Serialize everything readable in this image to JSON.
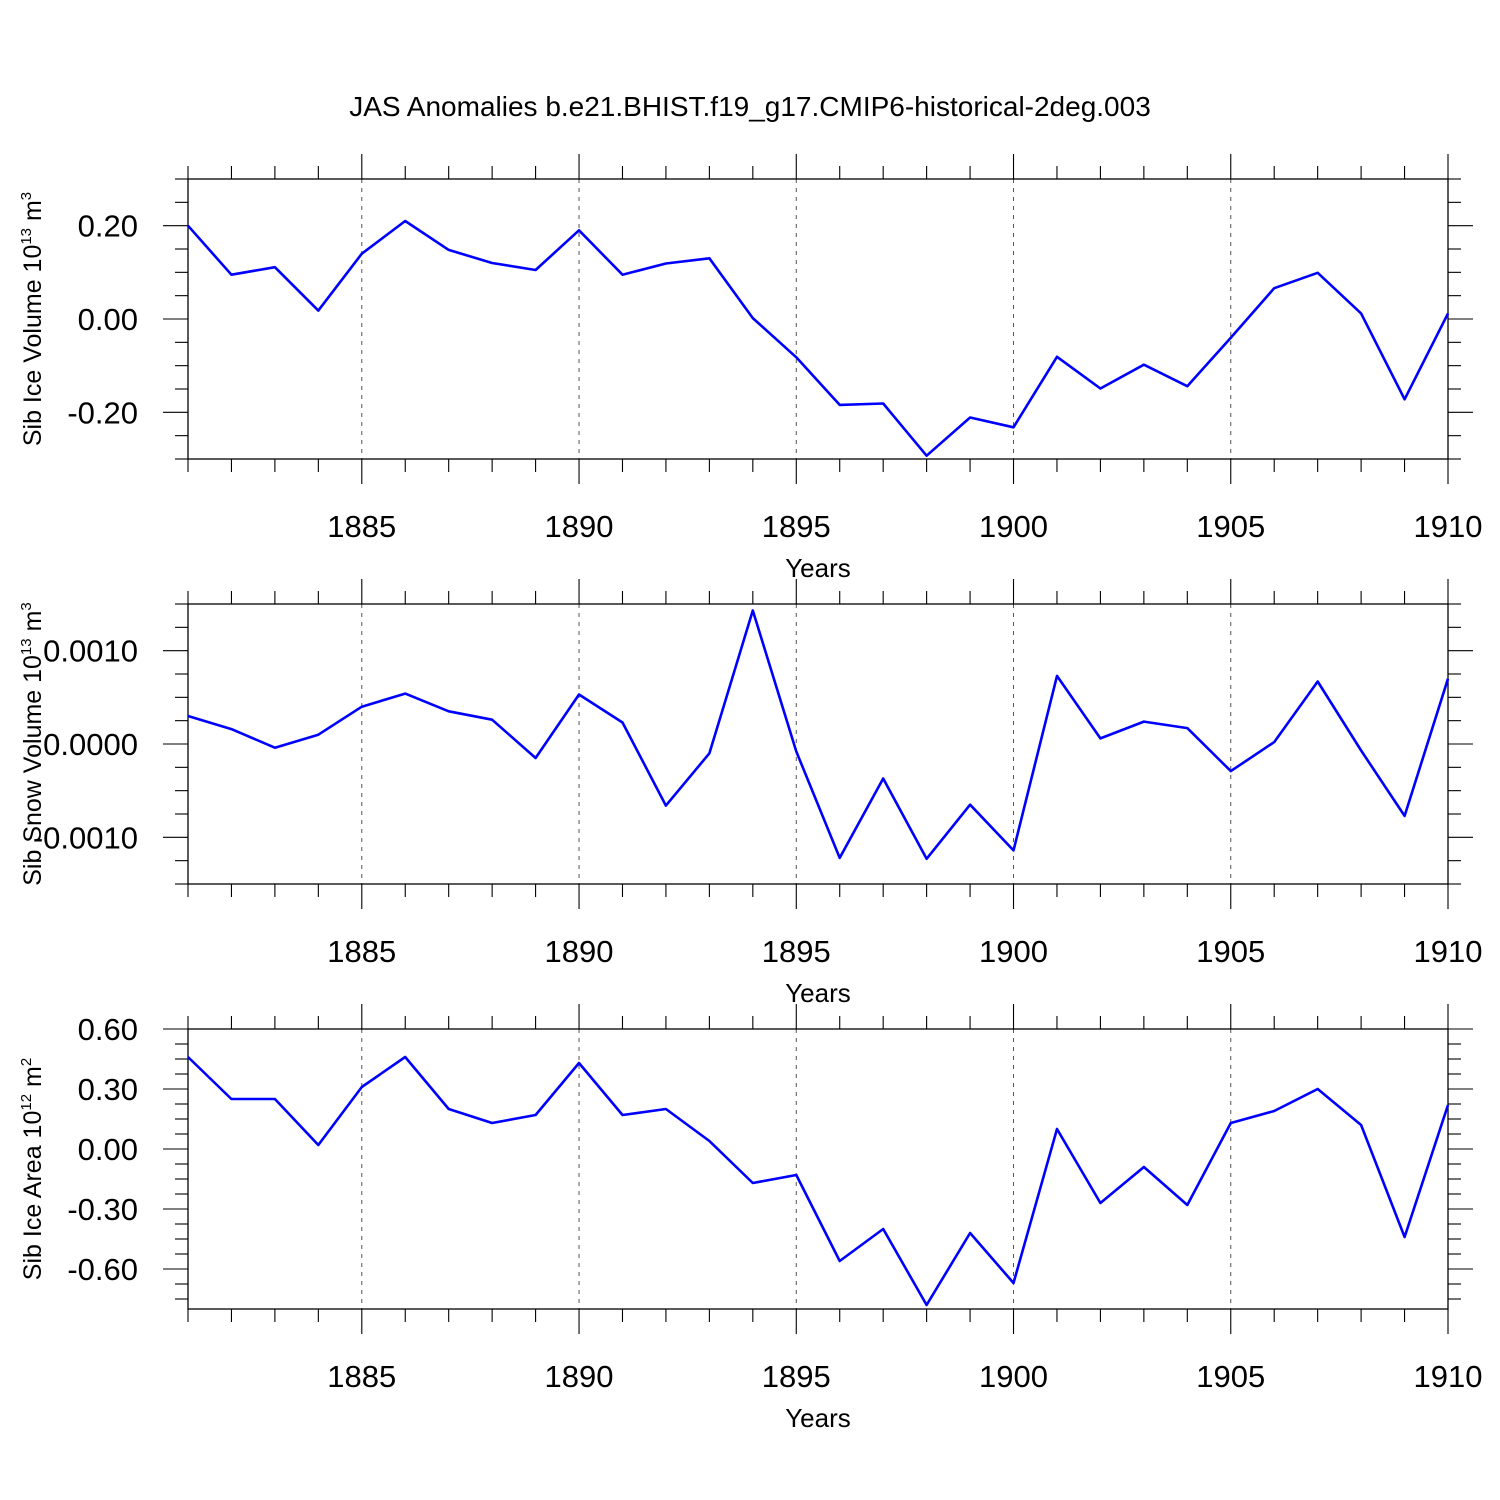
{
  "title": "JAS Anomalies b.e21.BHIST.f19_g17.CMIP6-historical-2deg.003",
  "line_color": "#0000ff",
  "chart_data": [
    {
      "type": "line",
      "ylabel": {
        "prefix": "Sib Ice Volume 10",
        "exp": "13",
        "unit": " m",
        "unit_exp": "3"
      },
      "xlabel": "Years",
      "xlim": [
        1881,
        1910
      ],
      "ylim": [
        -0.3,
        0.3
      ],
      "xticks": [
        1885,
        1890,
        1895,
        1900,
        1905,
        1910
      ],
      "yticks": [
        0.2,
        0.0,
        -0.2
      ],
      "ytick_labels": [
        "0.20",
        "0.00",
        "-0.20"
      ],
      "grid": "vertical dashed at major x ticks",
      "x": [
        1881,
        1882,
        1883,
        1884,
        1885,
        1886,
        1887,
        1888,
        1889,
        1890,
        1891,
        1892,
        1893,
        1894,
        1895,
        1896,
        1897,
        1898,
        1899,
        1900,
        1901,
        1902,
        1903,
        1904,
        1905,
        1906,
        1907,
        1908,
        1909,
        1910
      ],
      "values": [
        0.2,
        0.095,
        0.111,
        0.018,
        0.14,
        0.21,
        0.148,
        0.12,
        0.105,
        0.19,
        0.095,
        0.119,
        0.13,
        0.002,
        -0.082,
        -0.184,
        -0.181,
        -0.293,
        -0.211,
        -0.232,
        -0.081,
        -0.149,
        -0.098,
        -0.144,
        -0.04,
        0.066,
        0.099,
        0.012,
        -0.172,
        0.012
      ]
    },
    {
      "type": "line",
      "ylabel": {
        "prefix": "Sib Snow Volume 10",
        "exp": "13",
        "unit": " m",
        "unit_exp": "3"
      },
      "xlabel": "Years",
      "xlim": [
        1881,
        1910
      ],
      "ylim": [
        -0.0015,
        0.0015
      ],
      "xticks": [
        1885,
        1890,
        1895,
        1900,
        1905,
        1910
      ],
      "yticks": [
        0.001,
        0.0,
        -0.001
      ],
      "ytick_labels": [
        "0.0010",
        "0.0000",
        "-0.0010"
      ],
      "grid": "vertical dashed at major x ticks",
      "x": [
        1881,
        1882,
        1883,
        1884,
        1885,
        1886,
        1887,
        1888,
        1889,
        1890,
        1891,
        1892,
        1893,
        1894,
        1895,
        1896,
        1897,
        1898,
        1899,
        1900,
        1901,
        1902,
        1903,
        1904,
        1905,
        1906,
        1907,
        1908,
        1909,
        1910
      ],
      "values": [
        0.0003,
        0.00016,
        -4e-05,
        0.0001,
        0.0004,
        0.00054,
        0.00035,
        0.00026,
        -0.00015,
        0.00053,
        0.00023,
        -0.00066,
        -0.0001,
        0.00143,
        -8e-05,
        -0.00122,
        -0.00037,
        -0.00123,
        -0.00065,
        -0.00114,
        0.00073,
        6e-05,
        0.00024,
        0.00017,
        -0.00029,
        2e-05,
        0.00067,
        -7e-05,
        -0.00077,
        0.0007
      ]
    },
    {
      "type": "line",
      "ylabel": {
        "prefix": "Sib Ice Area 10",
        "exp": "12",
        "unit": " m",
        "unit_exp": "2"
      },
      "xlabel": "Years",
      "xlim": [
        1881,
        1910
      ],
      "ylim": [
        -0.8,
        0.6
      ],
      "xticks": [
        1885,
        1890,
        1895,
        1900,
        1905,
        1910
      ],
      "yticks": [
        0.6,
        0.3,
        0.0,
        -0.3,
        -0.6
      ],
      "ytick_labels": [
        "0.60",
        "0.30",
        "0.00",
        "-0.30",
        "-0.60"
      ],
      "grid": "vertical dashed at major x ticks",
      "x": [
        1881,
        1882,
        1883,
        1884,
        1885,
        1886,
        1887,
        1888,
        1889,
        1890,
        1891,
        1892,
        1893,
        1894,
        1895,
        1896,
        1897,
        1898,
        1899,
        1900,
        1901,
        1902,
        1903,
        1904,
        1905,
        1906,
        1907,
        1908,
        1909,
        1910
      ],
      "values": [
        0.46,
        0.25,
        0.25,
        0.02,
        0.31,
        0.46,
        0.2,
        0.13,
        0.17,
        0.43,
        0.17,
        0.2,
        0.04,
        -0.17,
        -0.13,
        -0.56,
        -0.4,
        -0.78,
        -0.42,
        -0.67,
        0.1,
        -0.27,
        -0.09,
        -0.28,
        0.13,
        0.19,
        0.3,
        0.12,
        -0.44,
        0.22
      ]
    }
  ]
}
